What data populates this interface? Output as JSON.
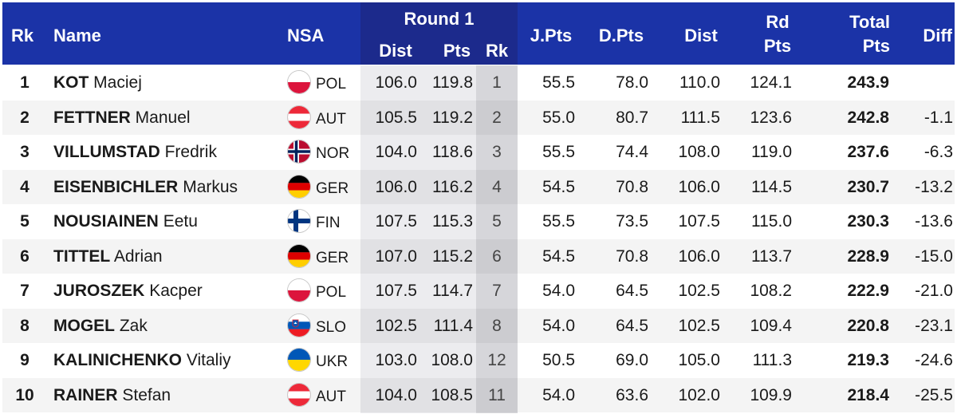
{
  "header": {
    "rk": "Rk",
    "name": "Name",
    "nsa": "NSA",
    "round": "Round 1",
    "round_dist": "Dist",
    "round_pts": "Pts",
    "round_rk": "Rk",
    "jpts": "J.Pts",
    "dpts": "D.Pts",
    "dist": "Dist",
    "rd_line1": "Rd",
    "rd_line2": "Pts",
    "total_line1": "Total",
    "total_line2": "Pts",
    "diff": "Diff"
  },
  "colors": {
    "header_bg": "#1b33a7",
    "round_band_bg": "#1c2a8c",
    "round_shade": "#ececef",
    "round_rk_shade": "#d6d6da"
  },
  "rows": [
    {
      "rk": "1",
      "surname": "KOT",
      "first": "Maciej",
      "flag": "POL",
      "nsa": "POL",
      "dist1": "106.0",
      "pts1": "119.8",
      "rk1": "1",
      "jpts": "55.5",
      "dpts": "78.0",
      "dist": "110.0",
      "rd": "124.1",
      "total": "243.9",
      "diff": ""
    },
    {
      "rk": "2",
      "surname": "FETTNER",
      "first": "Manuel",
      "flag": "AUT",
      "nsa": "AUT",
      "dist1": "105.5",
      "pts1": "119.2",
      "rk1": "2",
      "jpts": "55.0",
      "dpts": "80.7",
      "dist": "111.5",
      "rd": "123.6",
      "total": "242.8",
      "diff": "-1.1"
    },
    {
      "rk": "3",
      "surname": "VILLUMSTAD",
      "first": "Fredrik",
      "flag": "NOR",
      "nsa": "NOR",
      "dist1": "104.0",
      "pts1": "118.6",
      "rk1": "3",
      "jpts": "55.5",
      "dpts": "74.4",
      "dist": "108.0",
      "rd": "119.0",
      "total": "237.6",
      "diff": "-6.3"
    },
    {
      "rk": "4",
      "surname": "EISENBICHLER",
      "first": "Markus",
      "flag": "GER",
      "nsa": "GER",
      "dist1": "106.0",
      "pts1": "116.2",
      "rk1": "4",
      "jpts": "54.5",
      "dpts": "70.8",
      "dist": "106.0",
      "rd": "114.5",
      "total": "230.7",
      "diff": "-13.2"
    },
    {
      "rk": "5",
      "surname": "NOUSIAINEN",
      "first": "Eetu",
      "flag": "FIN",
      "nsa": "FIN",
      "dist1": "107.5",
      "pts1": "115.3",
      "rk1": "5",
      "jpts": "55.5",
      "dpts": "73.5",
      "dist": "107.5",
      "rd": "115.0",
      "total": "230.3",
      "diff": "-13.6"
    },
    {
      "rk": "6",
      "surname": "TITTEL",
      "first": "Adrian",
      "flag": "GER",
      "nsa": "GER",
      "dist1": "107.0",
      "pts1": "115.2",
      "rk1": "6",
      "jpts": "54.5",
      "dpts": "70.8",
      "dist": "106.0",
      "rd": "113.7",
      "total": "228.9",
      "diff": "-15.0"
    },
    {
      "rk": "7",
      "surname": "JUROSZEK",
      "first": "Kacper",
      "flag": "POL",
      "nsa": "POL",
      "dist1": "107.5",
      "pts1": "114.7",
      "rk1": "7",
      "jpts": "54.0",
      "dpts": "64.5",
      "dist": "102.5",
      "rd": "108.2",
      "total": "222.9",
      "diff": "-21.0"
    },
    {
      "rk": "8",
      "surname": "MOGEL",
      "first": "Zak",
      "flag": "SLO",
      "nsa": "SLO",
      "dist1": "102.5",
      "pts1": "111.4",
      "rk1": "8",
      "jpts": "54.0",
      "dpts": "64.5",
      "dist": "102.5",
      "rd": "109.4",
      "total": "220.8",
      "diff": "-23.1"
    },
    {
      "rk": "9",
      "surname": "KALINICHENKO",
      "first": "Vitaliy",
      "flag": "UKR",
      "nsa": "UKR",
      "dist1": "103.0",
      "pts1": "108.0",
      "rk1": "12",
      "jpts": "50.5",
      "dpts": "69.0",
      "dist": "105.0",
      "rd": "111.3",
      "total": "219.3",
      "diff": "-24.6"
    },
    {
      "rk": "10",
      "surname": "RAINER",
      "first": "Stefan",
      "flag": "AUT",
      "nsa": "AUT",
      "dist1": "104.0",
      "pts1": "108.5",
      "rk1": "11",
      "jpts": "54.0",
      "dpts": "63.6",
      "dist": "102.0",
      "rd": "109.9",
      "total": "218.4",
      "diff": "-25.5"
    }
  ]
}
